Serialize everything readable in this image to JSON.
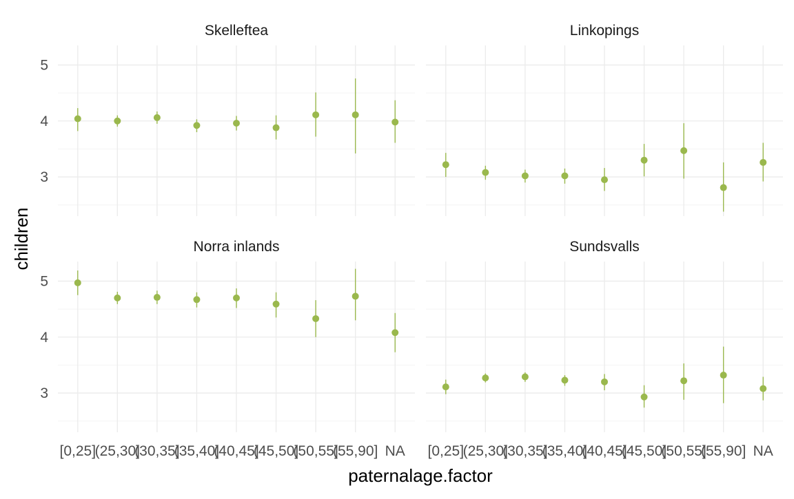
{
  "chart_data": {
    "type": "scatter",
    "subtype": "pointrange-facets",
    "xlabel": "paternalage.factor",
    "ylabel": "children",
    "categories": [
      "[0,25]",
      "(25,30]",
      "(30,35]",
      "(35,40]",
      "(40,45]",
      "(45,50]",
      "(50,55]",
      "(55,90]",
      "NA"
    ],
    "ylim": [
      2.3,
      5.35
    ],
    "yticks": [
      3,
      4,
      5
    ],
    "grid": true,
    "point_color": "#9ab84d",
    "panels": [
      {
        "title": "Skelleftea",
        "values": [
          4.04,
          4.0,
          4.06,
          3.92,
          3.96,
          3.88,
          4.11,
          4.11,
          3.98
        ],
        "lower": [
          3.82,
          3.9,
          3.95,
          3.8,
          3.83,
          3.67,
          3.72,
          3.42,
          3.61
        ],
        "upper": [
          4.23,
          4.1,
          4.17,
          4.03,
          4.09,
          4.1,
          4.51,
          4.76,
          4.37
        ]
      },
      {
        "title": "Linkopings",
        "values": [
          3.22,
          3.08,
          3.02,
          3.02,
          2.95,
          3.3,
          3.47,
          2.81,
          3.26
        ],
        "lower": [
          3.0,
          2.95,
          2.9,
          2.88,
          2.75,
          3.01,
          2.97,
          2.38,
          2.92
        ],
        "upper": [
          3.43,
          3.2,
          3.13,
          3.15,
          3.16,
          3.59,
          3.96,
          3.26,
          3.61
        ]
      },
      {
        "title": "Norra inlands",
        "values": [
          4.97,
          4.7,
          4.71,
          4.67,
          4.7,
          4.59,
          4.33,
          4.73,
          4.08
        ],
        "lower": [
          4.75,
          4.59,
          4.59,
          4.53,
          4.52,
          4.35,
          4.0,
          4.3,
          3.73
        ],
        "upper": [
          5.19,
          4.81,
          4.83,
          4.8,
          4.87,
          4.8,
          4.66,
          5.22,
          4.43
        ]
      },
      {
        "title": "Sundsvalls",
        "values": [
          3.11,
          3.27,
          3.29,
          3.23,
          3.2,
          2.93,
          3.22,
          3.32,
          3.08
        ],
        "lower": [
          2.98,
          3.19,
          3.2,
          3.13,
          3.05,
          2.74,
          2.88,
          2.82,
          2.87
        ],
        "upper": [
          3.24,
          3.35,
          3.37,
          3.32,
          3.34,
          3.14,
          3.53,
          3.83,
          3.29
        ]
      }
    ]
  }
}
